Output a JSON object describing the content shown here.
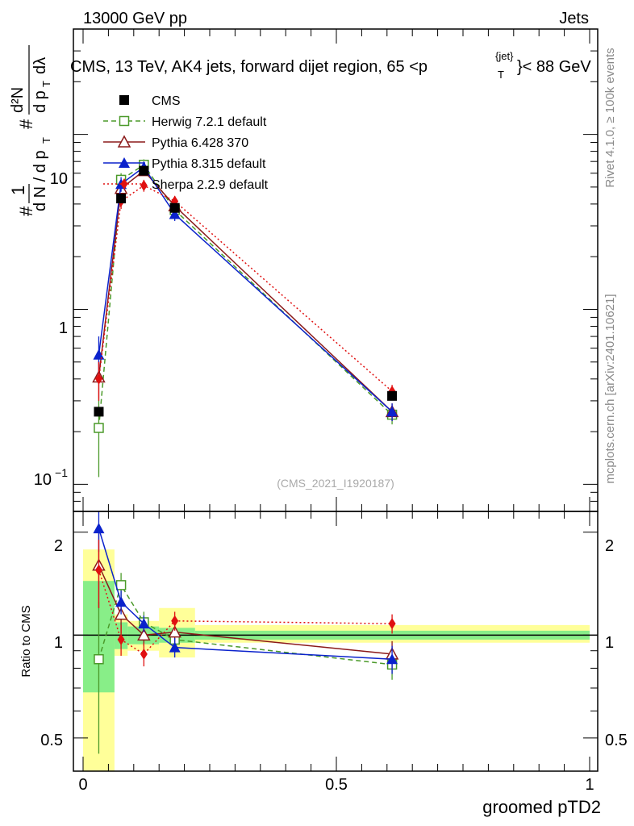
{
  "chart_data": {
    "type": "line",
    "header_left": "13000 GeV pp",
    "header_right": "Jets",
    "title": "CMS, 13 TeV, AK4 jets, forward dijet region, 65 <p",
    "title_sup": "{jet}",
    "title_sub": "T",
    "title_end": "}< 88 GeV",
    "analysis_label": "(CMS_2021_I1920187)",
    "side_label_top": "Rivet 4.1.0, ≥ 100k events",
    "side_label_bottom": "mcplots.cern.ch [arXiv:2401.10621]",
    "ylabel_ratio": "Ratio to CMS",
    "xlabel": "groomed pTD2",
    "xlim": [
      0,
      1
    ],
    "ylim_main": [
      0.07,
      40
    ],
    "ylim_ratio": [
      0.4,
      2.3
    ],
    "x_ticks": [
      {
        "v": 0,
        "label": "0"
      },
      {
        "v": 0.5,
        "label": "0.5"
      },
      {
        "v": 1,
        "label": "1"
      }
    ],
    "ratio_ticks": [
      {
        "v": 0.5,
        "label": "0.5"
      },
      {
        "v": 1,
        "label": "1"
      },
      {
        "v": 2,
        "label": "2"
      }
    ],
    "main_tick_labels": [
      "10",
      "1",
      "10",
      "−1"
    ],
    "x": [
      0.031,
      0.075,
      0.12,
      0.181,
      0.61
    ],
    "bin_edges": [
      0,
      0.062,
      0.088,
      0.15,
      0.221,
      1.0
    ],
    "data": {
      "name": "CMS",
      "color": "#000000",
      "values": [
        0.26,
        4.3,
        6.2,
        3.8,
        0.32
      ],
      "band_inner": [
        [
          0.68,
          1.44
        ],
        [
          0.91,
          1.09
        ],
        [
          0.94,
          1.06
        ],
        [
          0.95,
          1.05
        ],
        [
          0.97,
          1.03
        ]
      ],
      "band_outer": [
        [
          0.4,
          1.78
        ],
        [
          0.87,
          1.15
        ],
        [
          0.9,
          1.1
        ],
        [
          0.86,
          1.2
        ],
        [
          0.95,
          1.07
        ]
      ]
    },
    "series": [
      {
        "name": "Herwig 7.2.1 default",
        "color": "#4b9a2a",
        "marker": "open-square",
        "dash": "6,4",
        "values": [
          0.21,
          5.5,
          6.7,
          3.7,
          0.25
        ],
        "ratio": [
          0.85,
          1.4,
          1.09,
          0.97,
          0.82
        ],
        "err": [
          0.1,
          0.5,
          0.5,
          0.3,
          0.03
        ],
        "ratio_err": [
          0.4,
          0.12,
          0.08,
          0.08,
          0.08
        ]
      },
      {
        "name": "Pythia 6.428 370",
        "color": "#8b1a1a",
        "marker": "open-triangle",
        "dash": "",
        "values": [
          0.41,
          4.9,
          6.2,
          3.9,
          0.26
        ],
        "ratio": [
          1.6,
          1.15,
          1.0,
          1.02,
          0.88
        ],
        "err": [
          0.1,
          0.5,
          0.4,
          0.3,
          0.03
        ],
        "ratio_err": [
          0.4,
          0.14,
          0.07,
          0.07,
          0.08
        ]
      },
      {
        "name": "Pythia 8.315 default",
        "color": "#0b22cc",
        "marker": "filled-triangle",
        "dash": "",
        "values": [
          0.55,
          5.2,
          6.5,
          3.5,
          0.26
        ],
        "ratio": [
          2.05,
          1.25,
          1.08,
          0.92,
          0.85
        ],
        "err": [
          0.15,
          0.5,
          0.5,
          0.3,
          0.03
        ],
        "ratio_err": [
          0.3,
          0.1,
          0.06,
          0.06,
          0.08
        ]
      },
      {
        "name": "Sherpa 2.2.9 default",
        "color": "#e01010",
        "marker": "filled-diamond",
        "dash": "2,3",
        "values": [
          0.4,
          4.15,
          5.1,
          4.15,
          0.34
        ],
        "ratio": [
          1.55,
          0.97,
          0.88,
          1.1,
          1.08
        ],
        "err": [
          0.1,
          0.4,
          0.4,
          0.3,
          0.03
        ],
        "ratio_err": [
          0.35,
          0.1,
          0.07,
          0.07,
          0.07
        ]
      }
    ],
    "legend_position": "top-left"
  }
}
